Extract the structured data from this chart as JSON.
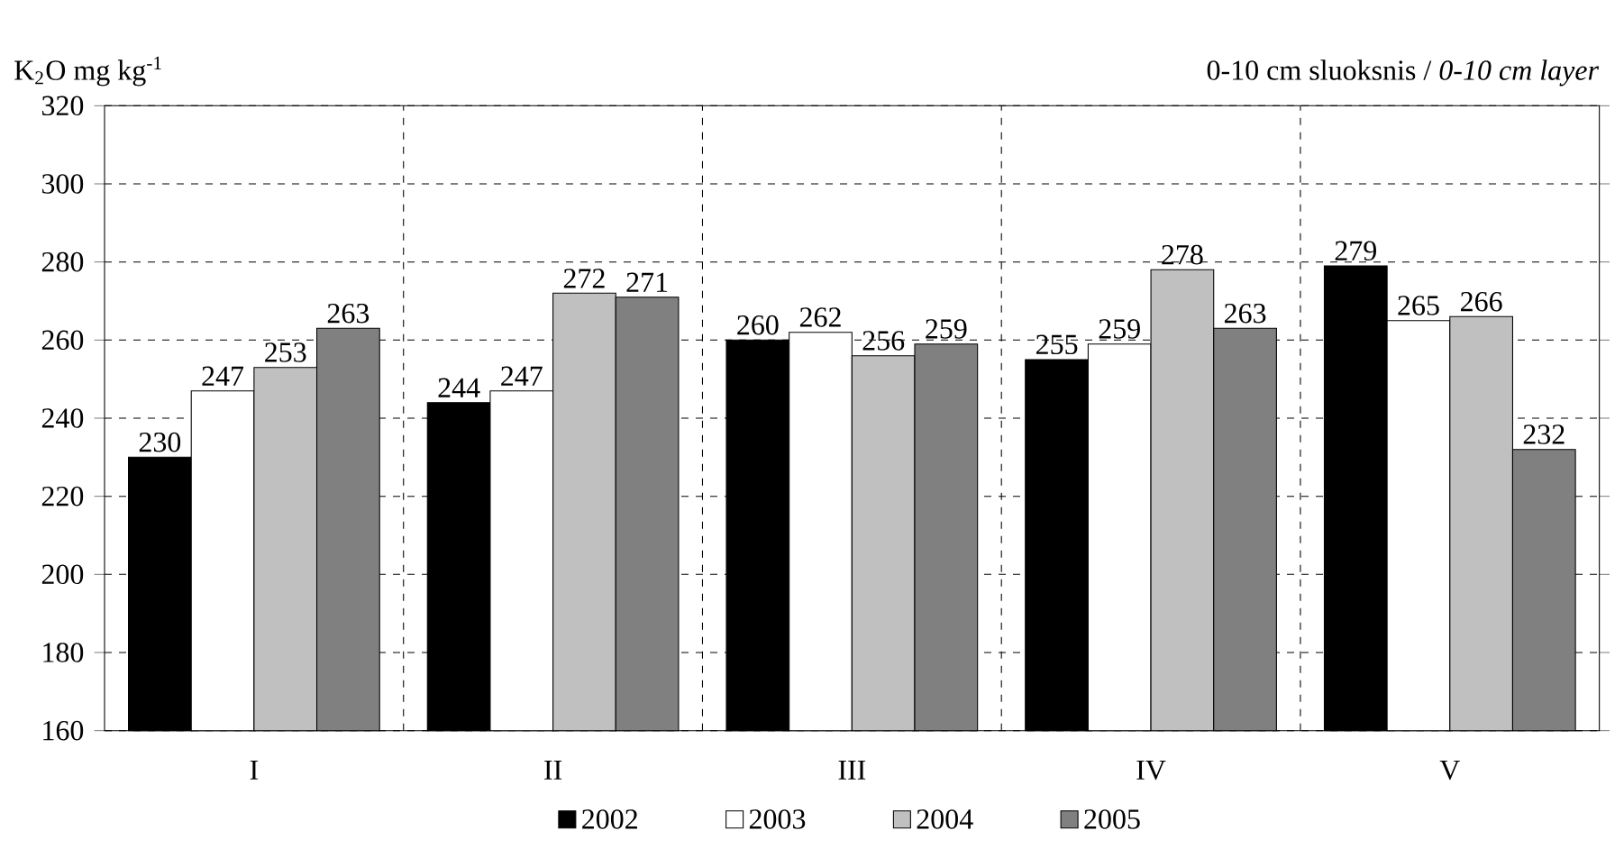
{
  "chart_data": {
    "type": "bar",
    "title": "0-10 cm sluoksnis / *0-10 cm layer*",
    "ylabel": "K$_{2}$O mg kg$^{-1}$",
    "categories": [
      "I",
      "II",
      "III",
      "IV",
      "V"
    ],
    "series": [
      {
        "name": "2002",
        "color": "#000000",
        "values": [
          230,
          244,
          260,
          255,
          279
        ]
      },
      {
        "name": "2003",
        "color": "#ffffff",
        "values": [
          247,
          247,
          262,
          259,
          265
        ]
      },
      {
        "name": "2004",
        "color": "#c0c0c0",
        "values": [
          253,
          272,
          256,
          278,
          266
        ]
      },
      {
        "name": "2005",
        "color": "#808080",
        "values": [
          263,
          271,
          259,
          263,
          232
        ]
      }
    ],
    "ylim": [
      160,
      320
    ],
    "yticks": [
      160,
      180,
      200,
      220,
      240,
      260,
      280,
      300,
      320
    ],
    "grid": true,
    "line_style": "dashed",
    "legend": "bottom",
    "data_labels": true
  }
}
